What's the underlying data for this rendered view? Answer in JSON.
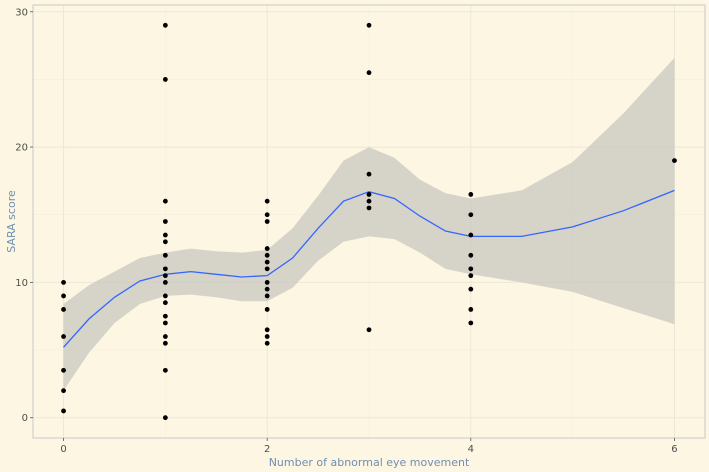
{
  "chart_data": {
    "type": "scatter",
    "xlabel": "Number of abnormal eye movement",
    "ylabel": "SARA score",
    "xlim": [
      -0.3,
      6.3
    ],
    "ylim": [
      -1.5,
      30.5
    ],
    "x_ticks": [
      0,
      2,
      4,
      6
    ],
    "y_ticks": [
      0,
      10,
      20,
      30
    ],
    "grid": true,
    "colors": {
      "background": "#fdf6e3",
      "panel_border": "#c8c8c8",
      "grid_major": "#ece7d7",
      "grid_minor": "#f4eedf",
      "points": "#000000",
      "smooth_line": "#3366ff",
      "confidence_band": "#c8c8c0"
    },
    "points": [
      {
        "x": 0,
        "y": 10
      },
      {
        "x": 0,
        "y": 9
      },
      {
        "x": 0,
        "y": 8
      },
      {
        "x": 0,
        "y": 6
      },
      {
        "x": 0,
        "y": 3.5
      },
      {
        "x": 0,
        "y": 2
      },
      {
        "x": 0,
        "y": 0.5
      },
      {
        "x": 1,
        "y": 29
      },
      {
        "x": 1,
        "y": 25
      },
      {
        "x": 1,
        "y": 16
      },
      {
        "x": 1,
        "y": 14.5
      },
      {
        "x": 1,
        "y": 13.5
      },
      {
        "x": 1,
        "y": 13
      },
      {
        "x": 1,
        "y": 12
      },
      {
        "x": 1,
        "y": 11
      },
      {
        "x": 1,
        "y": 10.5
      },
      {
        "x": 1,
        "y": 10
      },
      {
        "x": 1,
        "y": 9
      },
      {
        "x": 1,
        "y": 8.5
      },
      {
        "x": 1,
        "y": 7.5
      },
      {
        "x": 1,
        "y": 7
      },
      {
        "x": 1,
        "y": 6
      },
      {
        "x": 1,
        "y": 5.5
      },
      {
        "x": 1,
        "y": 3.5
      },
      {
        "x": 1,
        "y": 0
      },
      {
        "x": 2,
        "y": 16
      },
      {
        "x": 2,
        "y": 15
      },
      {
        "x": 2,
        "y": 14.5
      },
      {
        "x": 2,
        "y": 12.5
      },
      {
        "x": 2,
        "y": 12
      },
      {
        "x": 2,
        "y": 11.5
      },
      {
        "x": 2,
        "y": 11
      },
      {
        "x": 2,
        "y": 10
      },
      {
        "x": 2,
        "y": 9.5
      },
      {
        "x": 2,
        "y": 9
      },
      {
        "x": 2,
        "y": 8
      },
      {
        "x": 2,
        "y": 6.5
      },
      {
        "x": 2,
        "y": 6
      },
      {
        "x": 2,
        "y": 5.5
      },
      {
        "x": 3,
        "y": 29
      },
      {
        "x": 3,
        "y": 25.5
      },
      {
        "x": 3,
        "y": 18
      },
      {
        "x": 3,
        "y": 16.5
      },
      {
        "x": 3,
        "y": 16
      },
      {
        "x": 3,
        "y": 15.5
      },
      {
        "x": 3,
        "y": 6.5
      },
      {
        "x": 4,
        "y": 16.5
      },
      {
        "x": 4,
        "y": 15
      },
      {
        "x": 4,
        "y": 13.5
      },
      {
        "x": 4,
        "y": 12
      },
      {
        "x": 4,
        "y": 11
      },
      {
        "x": 4,
        "y": 10.5
      },
      {
        "x": 4,
        "y": 9.5
      },
      {
        "x": 4,
        "y": 8
      },
      {
        "x": 4,
        "y": 7
      },
      {
        "x": 6,
        "y": 19
      }
    ],
    "smooth": {
      "method": "loess",
      "x": [
        0,
        0.25,
        0.5,
        0.75,
        1,
        1.25,
        1.5,
        1.75,
        2,
        2.25,
        2.5,
        2.75,
        3,
        3.25,
        3.5,
        3.75,
        4,
        4.5,
        5,
        5.5,
        6
      ],
      "y": [
        5.2,
        7.3,
        8.9,
        10.1,
        10.6,
        10.8,
        10.6,
        10.4,
        10.5,
        11.8,
        14.0,
        16.0,
        16.7,
        16.2,
        14.9,
        13.8,
        13.4,
        13.4,
        14.1,
        15.3,
        16.8
      ],
      "lower": [
        2.0,
        4.8,
        7.0,
        8.4,
        9.0,
        9.1,
        8.9,
        8.6,
        8.6,
        9.6,
        11.6,
        13.0,
        13.4,
        13.2,
        12.2,
        11.0,
        10.6,
        10.0,
        9.3,
        8.1,
        6.9
      ],
      "upper": [
        8.4,
        9.8,
        10.8,
        11.8,
        12.2,
        12.5,
        12.3,
        12.2,
        12.4,
        14.0,
        16.4,
        19.0,
        20.0,
        19.2,
        17.6,
        16.6,
        16.2,
        16.8,
        18.9,
        22.5,
        26.6
      ]
    }
  }
}
